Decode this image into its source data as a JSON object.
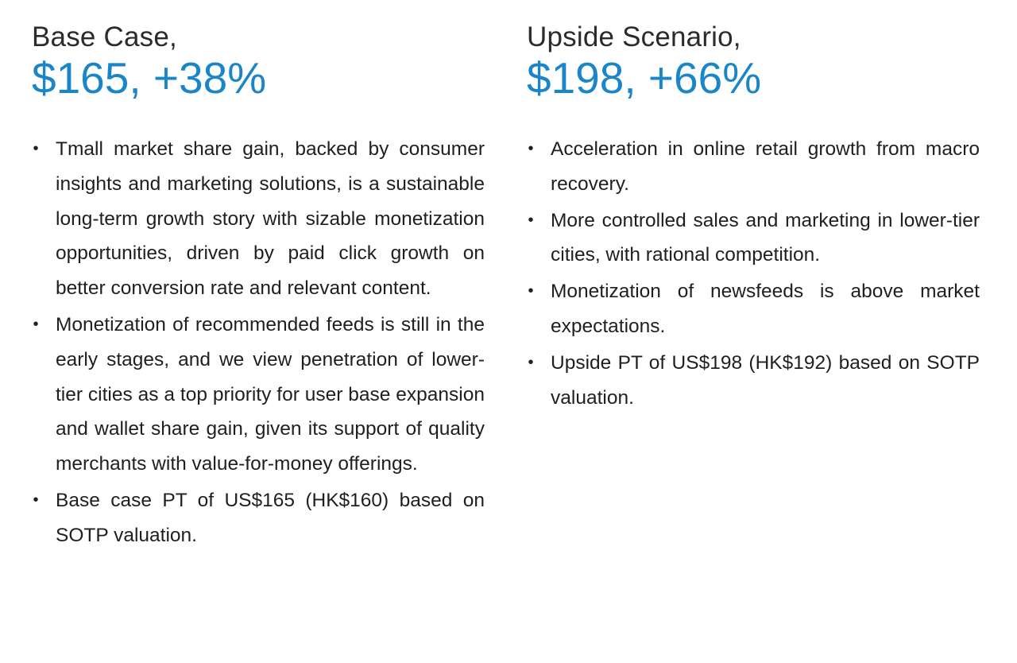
{
  "base_case": {
    "label": "Base Case,",
    "value": "$165, +38%",
    "bullets": [
      "Tmall market share gain, backed by consumer insights and marketing solutions, is a sustainable long-term growth story with sizable monetization opportunities, driven by paid click growth on better conversion rate and relevant content.",
      "Monetization of recommended feeds is still in the early stages, and we view penetration of lower-tier cities as a top priority for user base expansion and wallet share gain, given its support of quality merchants with value-for-money offerings.",
      "Base case PT of US$165 (HK$160) based on SOTP valuation."
    ]
  },
  "upside_scenario": {
    "label": "Upside Scenario,",
    "value": "$198, +66%",
    "bullets": [
      "Acceleration in online retail growth from macro recovery.",
      "More controlled sales and marketing in lower-tier cities, with rational competition.",
      "Monetization of newsfeeds is above market expectations.",
      "Upside PT of US$198 (HK$192) based on SOTP valuation."
    ]
  },
  "colors": {
    "accent": "#1a86c8",
    "text": "#1f1f1f"
  }
}
